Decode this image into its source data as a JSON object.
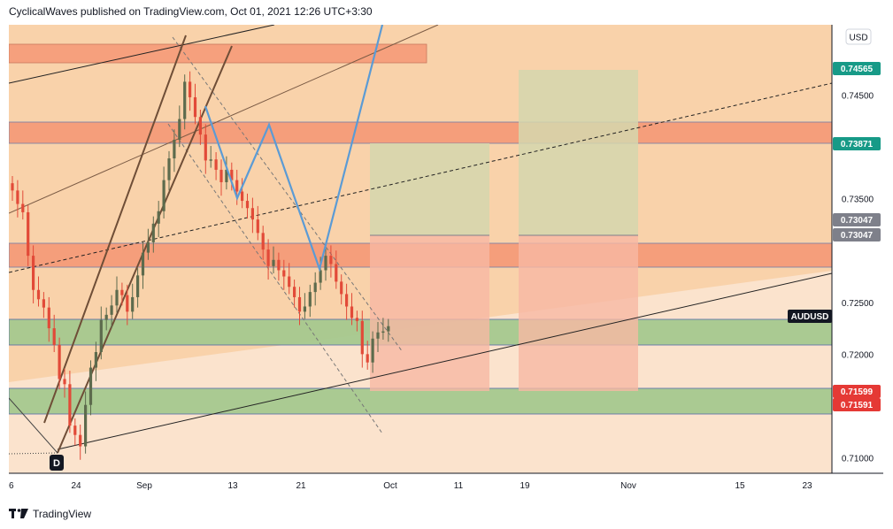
{
  "header": {
    "publish_line": "CyclicalWaves published on TradingView.com, Oct 01, 2021 12:26 UTC+3:30"
  },
  "footer": {
    "brand": "TradingView",
    "logo_icon": "tradingview-logo-icon"
  },
  "colors": {
    "background_peach": "#fbe3cd",
    "band_orange": "#f8cfa6",
    "red_zone": "#f5906f",
    "green_zone": "#a6c98f",
    "target_box": "#d5d7ae",
    "stop_box": "#f8b8a4",
    "candle_up": "#5d6b4d",
    "candle_down": "#e24a38",
    "wave_line": "#5b9bd5",
    "teal_badge": "#179a87",
    "grey_badge": "#7e808a",
    "red_badge": "#e53935",
    "dark_badge": "#131722"
  },
  "chart_data": {
    "type": "candlestick",
    "symbol": "AUDUSD",
    "currency": "USD",
    "x_ticks": [
      "6",
      "24",
      "Sep",
      "13",
      "21",
      "Oct",
      "11",
      "19",
      "Nov",
      "15",
      "23"
    ],
    "y_ticks": [
      "0.74500",
      "0.74000",
      "0.73500",
      "0.72500",
      "0.72000",
      "0.71000"
    ],
    "ylim": [
      0.7085,
      0.7518
    ],
    "price_labels": [
      {
        "value": "0.74565",
        "style": "teal"
      },
      {
        "value": "0.73871",
        "style": "teal"
      },
      {
        "value": "0.73047",
        "style": "grey"
      },
      {
        "value": "0.73047",
        "style": "grey"
      },
      {
        "value": "AUDUSD",
        "style": "dark"
      },
      {
        "value": "0.71599",
        "style": "red"
      },
      {
        "value": "0.71591",
        "style": "red"
      }
    ],
    "annotations": [
      {
        "text": "D",
        "style": "dark"
      }
    ],
    "candles_close": [
      0.7358,
      0.7345,
      0.7337,
      0.7295,
      0.7262,
      0.7253,
      0.7245,
      0.7225,
      0.7209,
      0.7176,
      0.7171,
      0.7131,
      0.7122,
      0.7111,
      0.7151,
      0.7187,
      0.7202,
      0.7233,
      0.7238,
      0.7247,
      0.7262,
      0.7257,
      0.7241,
      0.7255,
      0.7276,
      0.7298,
      0.7308,
      0.7326,
      0.7338,
      0.7368,
      0.7389,
      0.7407,
      0.7427,
      0.7463,
      0.7448,
      0.7429,
      0.7412,
      0.7387,
      0.7388,
      0.7378,
      0.7366,
      0.7378,
      0.7368,
      0.7357,
      0.7348,
      0.7341,
      0.733,
      0.7317,
      0.7301,
      0.7285,
      0.7291,
      0.7281,
      0.7275,
      0.7265,
      0.7255,
      0.7241,
      0.7246,
      0.726,
      0.7269,
      0.7281,
      0.7295,
      0.7287,
      0.727,
      0.7258,
      0.7246,
      0.7235,
      0.7232,
      0.72,
      0.7192,
      0.7215,
      0.7221,
      0.7222,
      0.7227
    ]
  }
}
